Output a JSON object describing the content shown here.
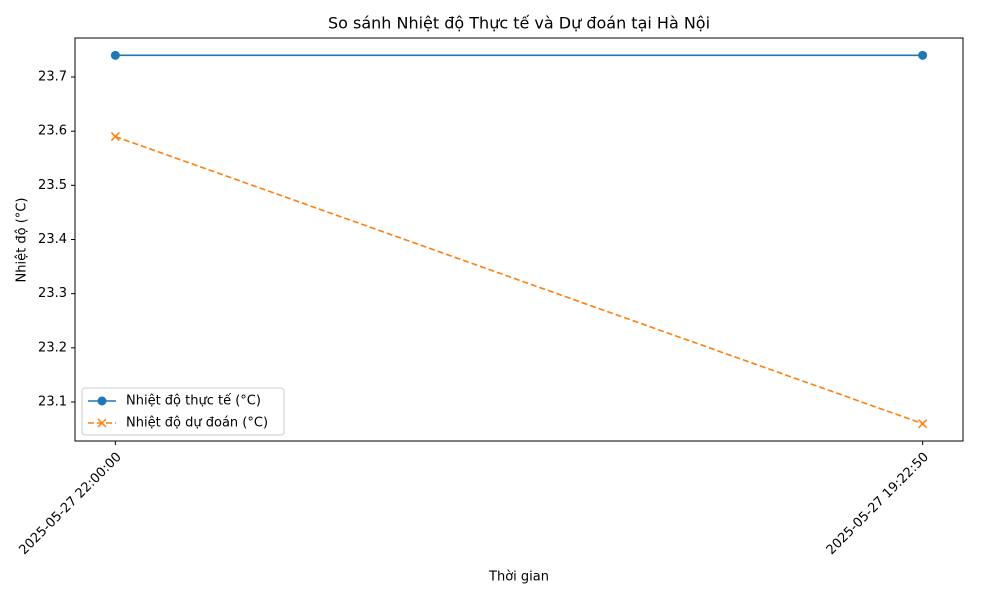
{
  "chart_data": {
    "type": "line",
    "title": "So sánh Nhiệt độ Thực tế và Dự đoán tại Hà Nội",
    "xlabel": "Thời gian",
    "ylabel": "Nhiệt độ (°C)",
    "categories": [
      "2025-05-27 22:00:00",
      "2025-05-27 19:22:50"
    ],
    "series": [
      {
        "name": "Nhiệt độ thực tế (°C)",
        "color": "#1f77b4",
        "marker": "o",
        "linestyle": "solid",
        "values": [
          23.74,
          23.74
        ]
      },
      {
        "name": "Nhiệt độ dự đoán (°C)",
        "color": "#ff7f0e",
        "marker": "x",
        "linestyle": "dashed",
        "values": [
          23.59,
          23.06
        ]
      }
    ],
    "ylim": [
      23.028,
      23.772
    ],
    "yticks": [
      23.1,
      23.2,
      23.3,
      23.4,
      23.5,
      23.6,
      23.7
    ],
    "grid": false,
    "legend": "lower left"
  }
}
